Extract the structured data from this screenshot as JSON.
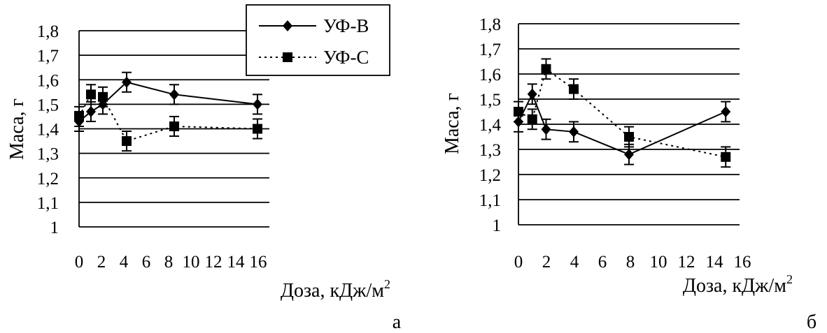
{
  "chart_data": [
    {
      "panel": "а",
      "type": "line",
      "xlabel": "Доза, кДж/м",
      "xlabel_sup": "2",
      "ylabel": "Маса, г",
      "xlim": [
        0,
        16
      ],
      "ylim": [
        1,
        1.8
      ],
      "x_tick_labels": [
        "0",
        "2",
        "4",
        "6",
        "8",
        "10",
        "12",
        "14",
        "16"
      ],
      "y_tick_labels": [
        "1",
        "1,1",
        "1,2",
        "1,3",
        "1,4",
        "1,5",
        "1,6",
        "1,7",
        "1,8"
      ],
      "grid": "horizontal",
      "legend": "top-right",
      "series": [
        {
          "name": "УФ-В",
          "style": "solid",
          "marker": "diamond",
          "x": [
            0,
            1,
            2,
            4,
            8,
            15
          ],
          "y": [
            1.43,
            1.47,
            1.5,
            1.59,
            1.54,
            1.5
          ],
          "err": [
            0.04,
            0.04,
            0.04,
            0.04,
            0.04,
            0.04
          ]
        },
        {
          "name": "УФ-С",
          "style": "dotted",
          "marker": "square",
          "x": [
            0,
            1,
            2,
            4,
            8,
            15
          ],
          "y": [
            1.45,
            1.54,
            1.53,
            1.35,
            1.41,
            1.4
          ],
          "err": [
            0.04,
            0.04,
            0.04,
            0.04,
            0.04,
            0.04
          ]
        }
      ]
    },
    {
      "panel": "б",
      "type": "line",
      "xlabel": "Доза, кДж/м",
      "xlabel_sup": "2",
      "ylabel": "Маса, г",
      "xlim": [
        0,
        16
      ],
      "ylim": [
        1,
        1.8
      ],
      "x_tick_labels": [
        "0",
        "2",
        "4",
        "6",
        "8",
        "10",
        "12",
        "14",
        "16"
      ],
      "y_tick_labels": [
        "1",
        "1,1",
        "1,2",
        "1,3",
        "1,4",
        "1,5",
        "1,6",
        "1,7",
        "1,8"
      ],
      "grid": "horizontal",
      "series": [
        {
          "name": "УФ-В",
          "style": "solid",
          "marker": "diamond",
          "x": [
            0,
            1,
            2,
            4,
            8,
            15
          ],
          "y": [
            1.41,
            1.52,
            1.38,
            1.37,
            1.28,
            1.45
          ],
          "err": [
            0.04,
            0.04,
            0.04,
            0.04,
            0.04,
            0.04
          ]
        },
        {
          "name": "УФ-С",
          "style": "dotted",
          "marker": "square",
          "x": [
            0,
            1,
            2,
            4,
            8,
            15
          ],
          "y": [
            1.45,
            1.42,
            1.62,
            1.54,
            1.35,
            1.27
          ],
          "err": [
            0.04,
            0.04,
            0.04,
            0.04,
            0.04,
            0.04
          ]
        }
      ]
    }
  ]
}
